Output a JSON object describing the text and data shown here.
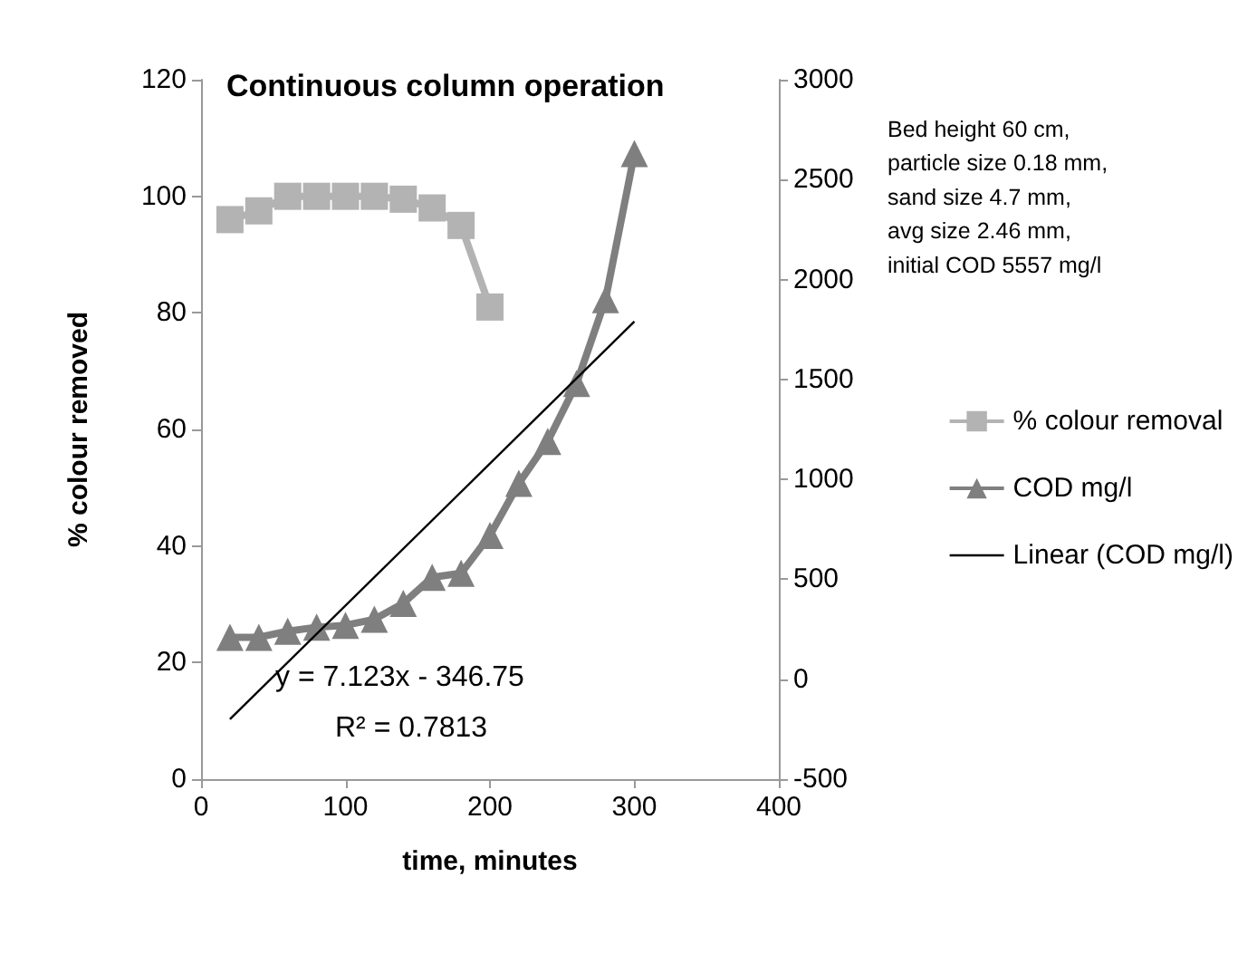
{
  "chart_data": {
    "type": "line",
    "title": "Continuous column operation",
    "xlabel": "time, minutes",
    "ylabel": "% colour removed",
    "annotations": [
      "Bed height 60 cm,\nparticle size 0.18 mm,\nsand size 4.7 mm,\navg size 2.46 mm,\ninitial COD 5557 mg/l",
      "y = 7.123x - 346.75",
      "R² = 0.7813"
    ],
    "series": [
      {
        "name": "% colour removal",
        "color": "#b3b3b3",
        "marker": "square",
        "x": [
          20,
          40,
          60,
          80,
          100,
          120,
          140,
          160,
          180,
          200
        ],
        "values": [
          96,
          97.5,
          100,
          100,
          100,
          100,
          99.5,
          98,
          95,
          81
        ]
      },
      {
        "name": "COD mg/l",
        "color": "#7f7f7f",
        "marker": "triangle",
        "axis": "y2",
        "x": [
          20,
          40,
          60,
          80,
          100,
          120,
          140,
          160,
          180,
          200,
          220,
          240,
          260,
          280,
          300
        ],
        "values": [
          210,
          210,
          240,
          260,
          270,
          300,
          380,
          510,
          530,
          720,
          980,
          1190,
          1480,
          1900,
          2630
        ]
      },
      {
        "name": "Linear (COD mg/l)",
        "color": "#000000",
        "marker": "none",
        "axis": "y2",
        "x": [
          20,
          300
        ],
        "values": [
          -200,
          1790
        ]
      }
    ],
    "xlim": [
      0,
      400
    ],
    "xticks": [
      0,
      100,
      200,
      300,
      400
    ],
    "ylim": [
      0,
      120
    ],
    "yticks": [
      0,
      20,
      40,
      60,
      80,
      100,
      120
    ],
    "y2lim": [
      -500,
      3000
    ],
    "y2ticks": [
      -500,
      0,
      500,
      1000,
      1500,
      2000,
      2500,
      3000
    ],
    "grid": false,
    "legend": "right"
  }
}
